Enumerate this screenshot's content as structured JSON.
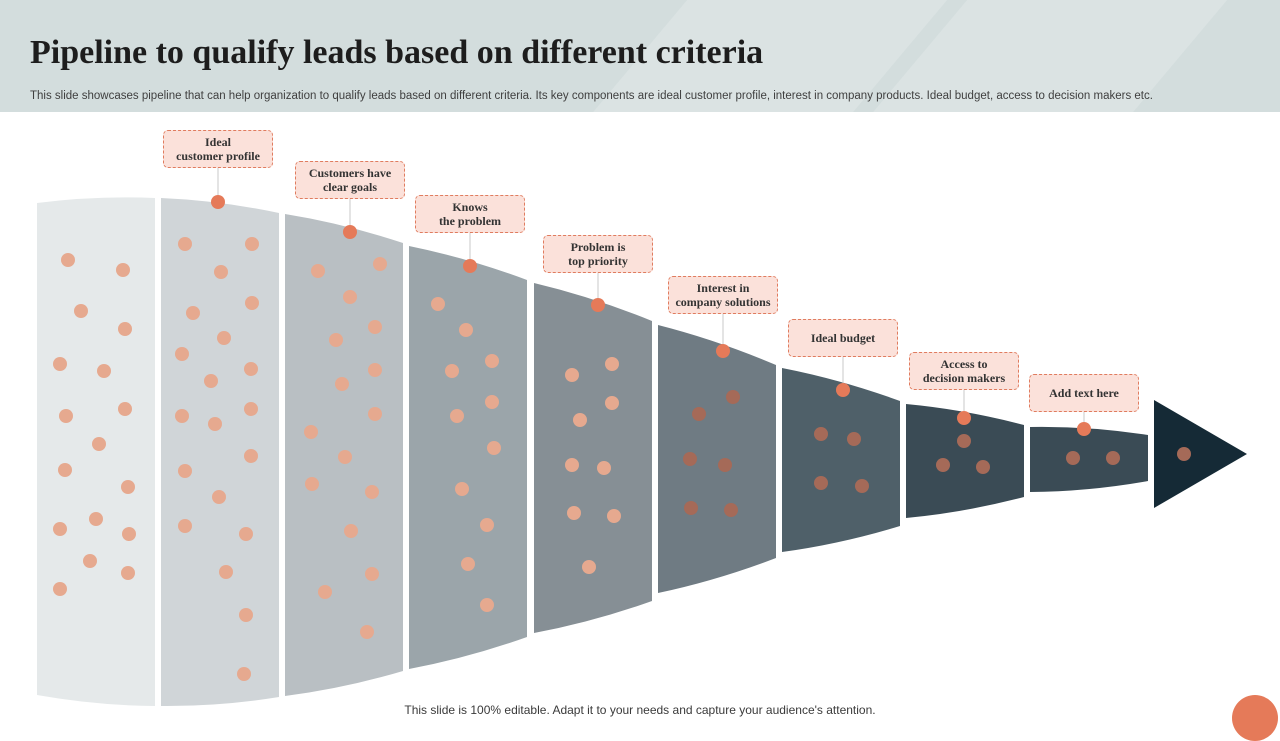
{
  "header": {
    "title": "Pipeline to qualify leads based on different criteria",
    "subtitle": "This slide showcases pipeline that can help organization to qualify leads based on different criteria. Its key components are ideal customer profile, interest in company products. Ideal budget, access to decision makers etc."
  },
  "stages": [
    {
      "label": "Ideal\ncustomer profile",
      "fill": "#e5e9ea"
    },
    {
      "label": "Customers have\nclear goals",
      "fill": "#d0d5d8"
    },
    {
      "label": "Knows\nthe problem",
      "fill": "#b9bfc3"
    },
    {
      "label": "Problem is\ntop priority",
      "fill": "#9ba5aa"
    },
    {
      "label": "Interest  in\ncompany  solutions",
      "fill": "#868f95"
    },
    {
      "label": "Ideal  budget",
      "fill": "#6f7b83"
    },
    {
      "label": "Access to\ndecision makers",
      "fill": "#4f6069"
    },
    {
      "label": "Add  text here",
      "fill": "#3a4b55"
    }
  ],
  "arrow_fill": "#152a36",
  "colors": {
    "accent": "#e57a59",
    "dot_light": "#e6a98f",
    "dot_dark": "#a56a58",
    "callout_bg": "#fbe1da"
  },
  "footer": {
    "text": "This slide is 100% editable. Adapt it to your needs and capture your audience's attention."
  }
}
